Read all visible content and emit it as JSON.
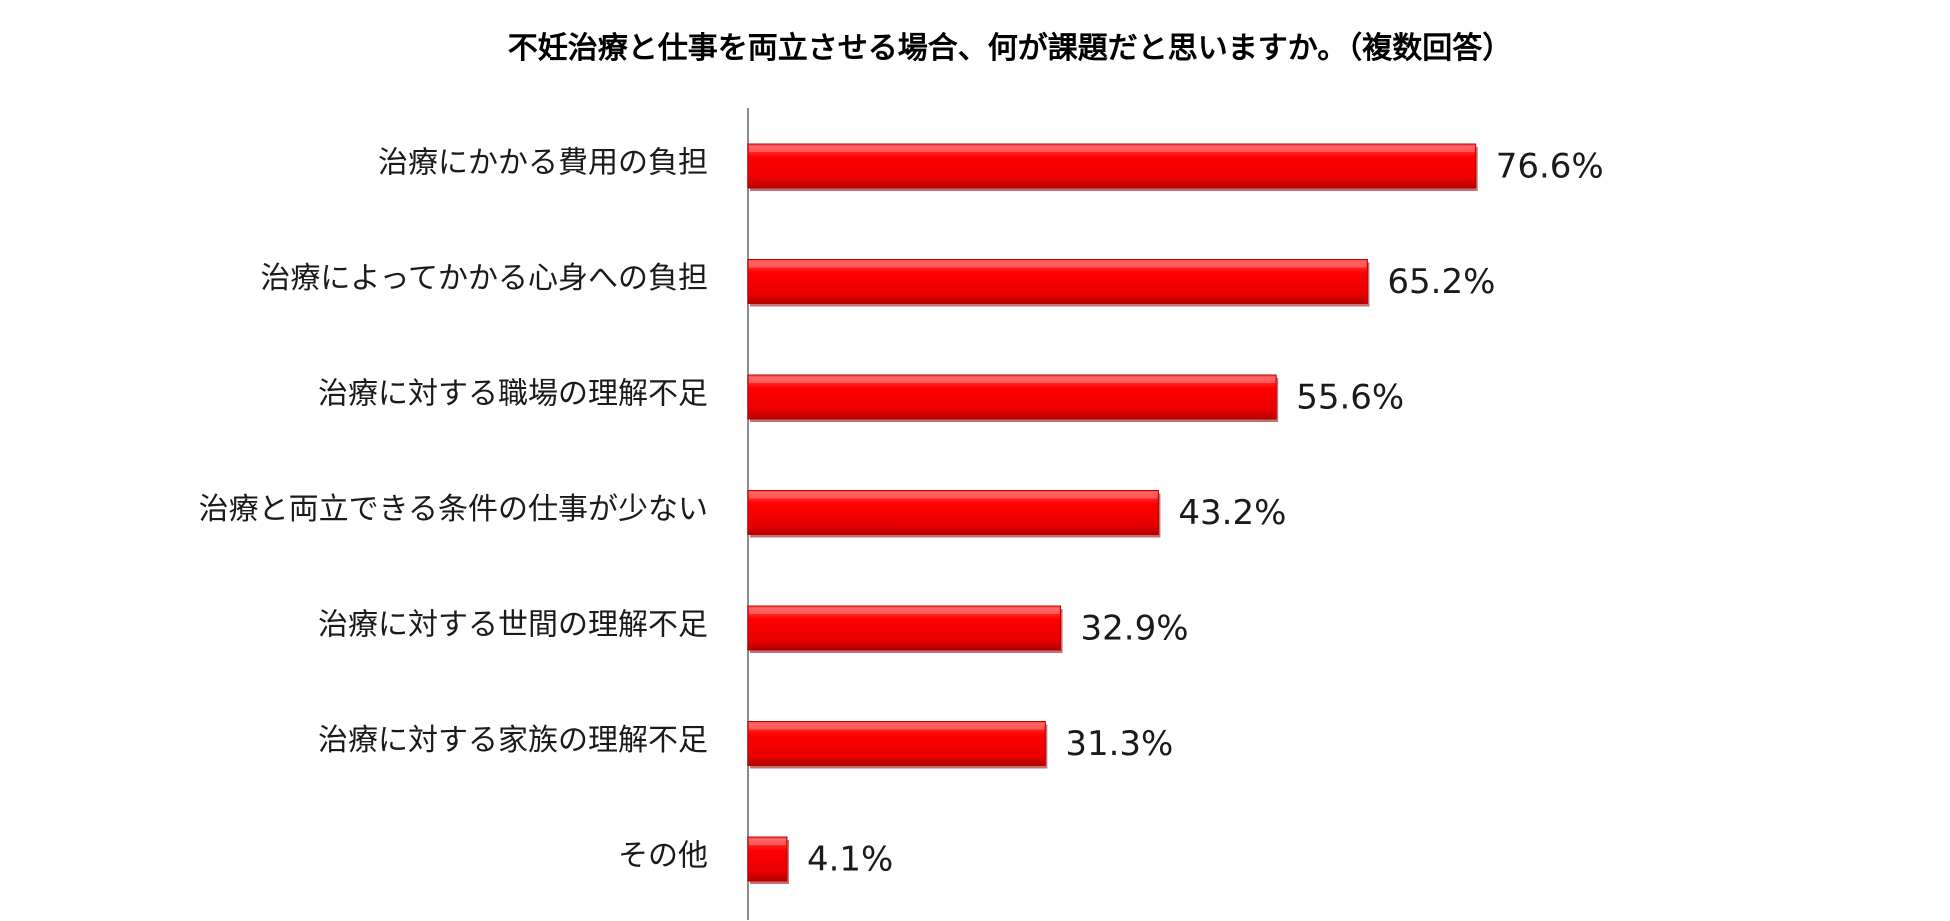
{
  "chart_data": {
    "type": "bar",
    "orientation": "horizontal",
    "title": "不妊治療と仕事を両立させる場合、何が課題だと思いますか。（複数回答）",
    "categories": [
      "治療にかかる費用の負担",
      "治療によってかかる心身への負担",
      "治療に対する職場の理解不足",
      "治療と両立できる条件の仕事が少ない",
      "治療に対する世間の理解不足",
      "治療に対する家族の理解不足",
      "その他"
    ],
    "values": [
      76.6,
      65.2,
      55.6,
      43.2,
      32.9,
      31.3,
      4.1
    ],
    "value_labels": [
      "76.6%",
      "65.2%",
      "55.6%",
      "43.2%",
      "32.9%",
      "31.3%",
      "4.1%"
    ],
    "xlim": [
      0,
      100
    ],
    "grid": false,
    "legend": "none",
    "bar_color": "#ff0000"
  }
}
